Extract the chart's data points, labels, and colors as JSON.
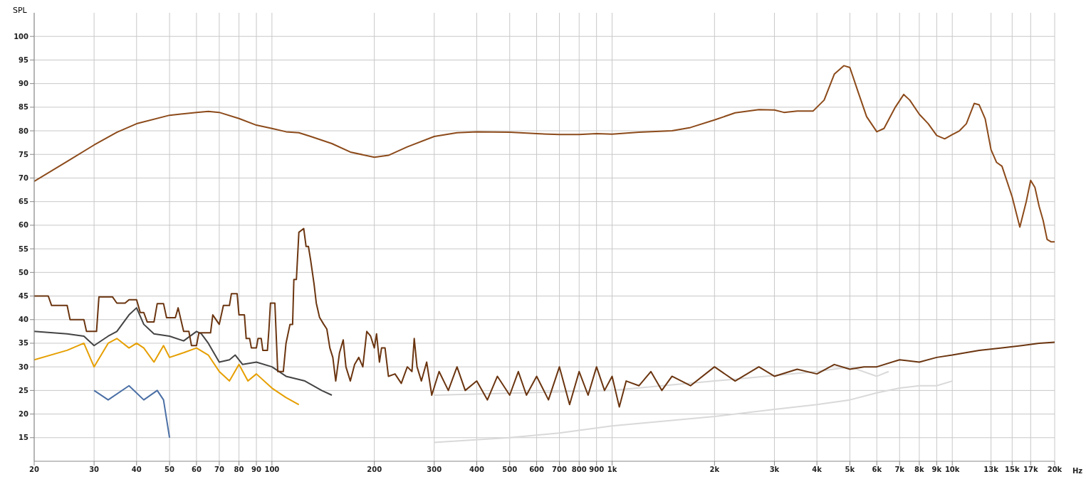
{
  "chart_data": {
    "type": "line",
    "ylabel": "SPL",
    "log": "x",
    "grid": true,
    "marker": "none",
    "line_style": "solid",
    "xlim": [
      20,
      20000
    ],
    "ylim": [
      10,
      105
    ],
    "xticks": [
      20,
      30,
      40,
      50,
      60,
      70,
      80,
      90,
      100,
      200,
      300,
      400,
      500,
      600,
      700,
      800,
      900,
      {
        "value": 1000,
        "label": "1k"
      },
      {
        "value": 2000,
        "label": "2k"
      },
      {
        "value": 3000,
        "label": "3k"
      },
      {
        "value": 4000,
        "label": "4k"
      },
      {
        "value": 5000,
        "label": "5k"
      },
      {
        "value": 6000,
        "label": "6k"
      },
      {
        "value": 7000,
        "label": "7k"
      },
      {
        "value": 8000,
        "label": "8k"
      },
      {
        "value": 9000,
        "label": "9k"
      },
      {
        "value": 10000,
        "label": "10k"
      },
      {
        "value": 13000,
        "label": "13k"
      },
      {
        "value": 15000,
        "label": "15k"
      },
      {
        "value": 17000,
        "label": "17k"
      },
      {
        "value": 20000,
        "label": "20k"
      }
    ],
    "xlabel": "Hz",
    "yticks": [
      15,
      20,
      25,
      30,
      35,
      40,
      45,
      50,
      55,
      60,
      65,
      70,
      75,
      80,
      85,
      90,
      95,
      100
    ],
    "series": [
      {
        "color": "#d9d9d9",
        "x": [
          300,
          500,
          700,
          1000,
          2000,
          3000,
          4000,
          5000,
          6000,
          7000,
          8000,
          9000,
          10000
        ],
        "values": [
          14,
          15,
          16,
          17.5,
          19.5,
          21,
          22,
          23,
          24.5,
          25.5,
          26,
          26,
          27
        ]
      },
      {
        "color": "#d9d9d9",
        "x": [
          300,
          1000,
          2000,
          4000,
          5000,
          6000,
          6500
        ],
        "values": [
          24,
          25,
          27,
          29,
          30,
          28,
          29
        ]
      },
      {
        "color": "#4a6fa5",
        "x": [
          30,
          33,
          38,
          42,
          46,
          48,
          50
        ],
        "values": [
          25,
          23,
          26,
          23,
          25,
          23,
          15
        ]
      },
      {
        "color": "#e69f00",
        "x": [
          20,
          25,
          28,
          30,
          33,
          35,
          38,
          40,
          42,
          45,
          48,
          50,
          55,
          60,
          65,
          70,
          75,
          80,
          85,
          90,
          100,
          110,
          120
        ],
        "values": [
          31.5,
          33.5,
          35,
          30,
          35,
          36,
          34,
          35,
          34,
          31,
          34.5,
          32,
          33,
          34,
          32.5,
          29,
          27,
          30.5,
          27,
          28.5,
          25.5,
          23.5,
          22
        ]
      },
      {
        "color": "#444444",
        "x": [
          20,
          25,
          28,
          30,
          33,
          35,
          38,
          40,
          42,
          45,
          50,
          55,
          60,
          62,
          65,
          70,
          75,
          78,
          82,
          90,
          100,
          110,
          125,
          140,
          150
        ],
        "values": [
          37.5,
          37,
          36.5,
          34.5,
          36.5,
          37.5,
          41,
          42.5,
          39,
          37,
          36.5,
          35.5,
          37.5,
          37,
          35,
          31,
          31.5,
          32.5,
          30.5,
          31,
          30,
          28,
          27,
          25,
          24
        ]
      },
      {
        "color": "#6b3510",
        "x": [
          20,
          22,
          22.5,
          25,
          25.5,
          28,
          28.5,
          30.5,
          31,
          34,
          35,
          37,
          38,
          40,
          41,
          42,
          43,
          45,
          46,
          48,
          49,
          52,
          53,
          55,
          57,
          58,
          60,
          61,
          66,
          67,
          70,
          72,
          75,
          76,
          79,
          80,
          83,
          84,
          86,
          87,
          90,
          91,
          93,
          94,
          97,
          98,
          99,
          102,
          104,
          108,
          110,
          113,
          115,
          116,
          118,
          120,
          124,
          126,
          128,
          130,
          133,
          135,
          138,
          142,
          145,
          148,
          151,
          154,
          158,
          162,
          165,
          170,
          175,
          180,
          185,
          190,
          195,
          200,
          203,
          207,
          210,
          215,
          220,
          230,
          240,
          250,
          258,
          262,
          267,
          275,
          285,
          295,
          310,
          330,
          350,
          370,
          400,
          430,
          460,
          500,
          530,
          560,
          600,
          650,
          700,
          750,
          800,
          850,
          900,
          950,
          1000,
          1050,
          1100,
          1200,
          1300,
          1400,
          1500,
          1700,
          2000,
          2300,
          2700,
          3000,
          3500,
          4000,
          4500,
          5000,
          5500,
          6000,
          7000,
          8000,
          9000,
          10000,
          12000,
          14000,
          16000,
          18000,
          20000
        ],
        "values": [
          45,
          45,
          43,
          43,
          40,
          40,
          37.5,
          37.5,
          44.8,
          44.8,
          43.5,
          43.5,
          44.2,
          44.2,
          41.5,
          41.5,
          39.5,
          39.5,
          43.4,
          43.4,
          40.4,
          40.4,
          42.5,
          37.5,
          37.5,
          34.5,
          34.5,
          37.2,
          37.2,
          41,
          39,
          43,
          43,
          45.5,
          45.5,
          41,
          41,
          36,
          36,
          34,
          34,
          36,
          36,
          33.5,
          33.5,
          38,
          43.5,
          43.5,
          29,
          29,
          35,
          39,
          39,
          48.5,
          48.5,
          58.5,
          59.3,
          55.5,
          55.5,
          52.5,
          47.5,
          43.5,
          40.5,
          39,
          38,
          34,
          32,
          27,
          33,
          35.7,
          30,
          27,
          30.5,
          32,
          30,
          37.5,
          36.5,
          34,
          37,
          31,
          34,
          34,
          28,
          28.5,
          26.5,
          30,
          29,
          36,
          30,
          27,
          31,
          24,
          29,
          25,
          30,
          25,
          27,
          23,
          28,
          24,
          29,
          24,
          28,
          23,
          30,
          22,
          29,
          24,
          30,
          25,
          28,
          21.5,
          27,
          26,
          29,
          25,
          28,
          26,
          30,
          27,
          30,
          28,
          29.5,
          28.5,
          30.5,
          29.5,
          30,
          30,
          31.5,
          31,
          32,
          32.5,
          33.5,
          34,
          34.5,
          35,
          35.2
        ]
      },
      {
        "color": "#8c4a1a",
        "x": [
          20,
          25,
          30,
          35,
          40,
          50,
          60,
          65,
          70,
          80,
          90,
          100,
          110,
          120,
          130,
          150,
          170,
          200,
          220,
          250,
          300,
          350,
          400,
          500,
          600,
          700,
          800,
          900,
          1000,
          1200,
          1500,
          1700,
          2000,
          2300,
          2700,
          3000,
          3200,
          3500,
          3900,
          4200,
          4500,
          4800,
          5000,
          5300,
          5600,
          6000,
          6300,
          6800,
          7200,
          7500,
          8000,
          8500,
          9000,
          9500,
          10000,
          10500,
          11000,
          11600,
          12000,
          12500,
          13000,
          13500,
          14000,
          15000,
          15800,
          16500,
          17000,
          17500,
          18000,
          18500,
          19000,
          19500,
          20000
        ],
        "values": [
          69.3,
          73.5,
          77,
          79.7,
          81.5,
          83.3,
          83.9,
          84.1,
          83.9,
          82.6,
          81.2,
          80.5,
          79.8,
          79.6,
          78.8,
          77.3,
          75.5,
          74.4,
          74.8,
          76.6,
          78.8,
          79.6,
          79.8,
          79.7,
          79.4,
          79.2,
          79.2,
          79.4,
          79.3,
          79.7,
          80,
          80.7,
          82.3,
          83.8,
          84.5,
          84.4,
          83.9,
          84.2,
          84.2,
          86.5,
          92,
          93.8,
          93.4,
          88,
          83,
          79.8,
          80.5,
          85,
          87.7,
          86.5,
          83.5,
          81.5,
          79,
          78.3,
          79.2,
          80,
          81.5,
          85.8,
          85.5,
          82.5,
          76,
          73.3,
          72.5,
          66,
          59.6,
          65,
          69.5,
          68,
          64,
          61,
          57,
          56.5,
          56.5
        ]
      }
    ]
  }
}
